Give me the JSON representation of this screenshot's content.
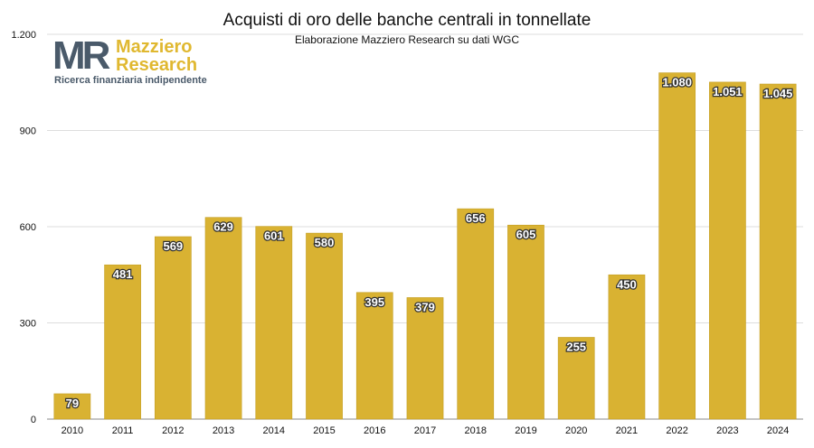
{
  "chart_data": {
    "type": "bar",
    "title": "Acquisti di oro delle banche centrali in tonnellate",
    "subtitle": "Elaborazione Mazziero Research su dati WGC",
    "categories": [
      "2010",
      "2011",
      "2012",
      "2013",
      "2014",
      "2015",
      "2016",
      "2017",
      "2018",
      "2019",
      "2020",
      "2021",
      "2022",
      "2023",
      "2024"
    ],
    "values": [
      79,
      481,
      569,
      629,
      601,
      580,
      395,
      379,
      656,
      605,
      255,
      450,
      1080,
      1051,
      1045
    ],
    "value_labels": [
      "79",
      "481",
      "569",
      "629",
      "601",
      "580",
      "395",
      "379",
      "656",
      "605",
      "255",
      "450",
      "1.080",
      "1.051",
      "1.045"
    ],
    "ylim": [
      0,
      1200
    ],
    "yticks": [
      0,
      300,
      600,
      900,
      1200
    ],
    "ytick_labels": [
      "0",
      "300",
      "600",
      "900",
      "1.200"
    ],
    "grid": true,
    "bar_color": "#d9b232",
    "grid_color": "#dddddd"
  },
  "logo": {
    "mark": "MR",
    "brand_line1": "Mazziero",
    "brand_line2": "Research",
    "tagline": "Ricerca finanziaria indipendente"
  }
}
